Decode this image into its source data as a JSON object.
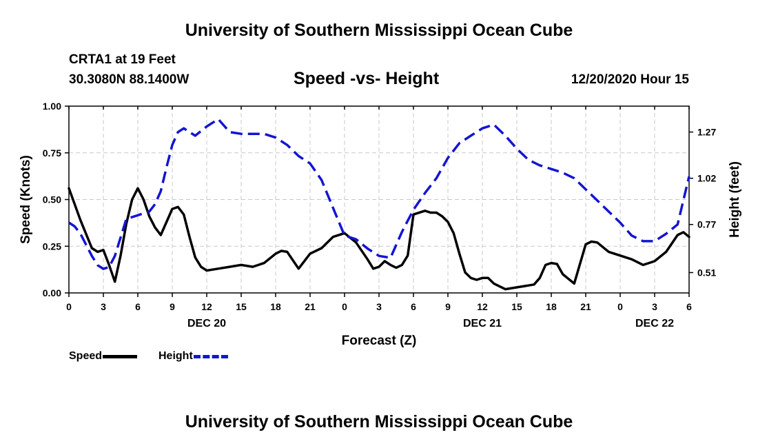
{
  "header": {
    "top_title": "University of Southern Mississippi Ocean Cube",
    "station": "CRTA1 at 19 Feet",
    "coords": "30.3080N 88.1400W",
    "chart_title": "Speed -vs- Height",
    "date_hour": "12/20/2020 Hour 15",
    "bottom_title": "University of Southern Mississippi Ocean Cube"
  },
  "legend": {
    "speed_label": "Speed",
    "height_label": "Height"
  },
  "colors": {
    "speed": "#000000",
    "height": "#1414d2",
    "grid": "#c8c8c8"
  },
  "chart_data": {
    "type": "line",
    "title": "Speed -vs- Height",
    "xlabel": "Forecast (Z)",
    "ylabel": "Speed (Knots)",
    "y2label": "Height (feet)",
    "xlim": [
      0,
      54
    ],
    "ylim": [
      0,
      1.0
    ],
    "y2lim": [
      0.4,
      1.41
    ],
    "grid": true,
    "x_tick_values": [
      0,
      3,
      6,
      9,
      12,
      15,
      18,
      21,
      24,
      27,
      30,
      33,
      36,
      39,
      42,
      45,
      48,
      51,
      54
    ],
    "x_tick_labels": [
      "0",
      "3",
      "6",
      "9",
      "12",
      "15",
      "18",
      "21",
      "0",
      "3",
      "6",
      "9",
      "12",
      "15",
      "18",
      "21",
      "0",
      "3",
      "6"
    ],
    "day_labels": [
      {
        "x": 12,
        "label": "DEC 20"
      },
      {
        "x": 36,
        "label": "DEC 21"
      },
      {
        "x": 51,
        "label": "DEC 22"
      }
    ],
    "y_tick_values": [
      0,
      0.25,
      0.5,
      0.75,
      1.0
    ],
    "y_tick_labels": [
      "0.00",
      "0.25",
      "0.50",
      "0.75",
      "1.00"
    ],
    "y2_tick_values": [
      0.51,
      0.77,
      1.02,
      1.27
    ],
    "y2_tick_labels": [
      "0.51",
      "0.77",
      "1.02",
      "1.27"
    ],
    "series": [
      {
        "name": "Speed",
        "axis": "left",
        "style": "solid",
        "x": [
          0,
          1,
          2,
          2.5,
          3,
          3.5,
          4,
          4.5,
          5,
          5.5,
          6,
          6.5,
          7,
          7.5,
          8,
          8.5,
          9,
          9.5,
          10,
          10.5,
          11,
          11.5,
          12,
          13,
          14,
          15,
          16,
          17,
          18,
          18.5,
          19,
          20,
          21,
          22,
          23,
          24,
          25,
          26,
          26.5,
          27,
          27.5,
          28,
          28.5,
          29,
          29.5,
          30,
          31,
          31.5,
          32,
          32.5,
          33,
          33.5,
          34,
          34.5,
          35,
          35.5,
          36,
          36.5,
          37,
          38,
          39,
          40,
          40.5,
          41,
          41.5,
          42,
          42.5,
          43,
          44,
          45,
          45.5,
          46,
          47,
          48,
          49,
          50,
          51,
          52,
          53,
          53.5,
          54
        ],
        "values": [
          0.56,
          0.39,
          0.24,
          0.22,
          0.23,
          0.15,
          0.06,
          0.2,
          0.37,
          0.5,
          0.56,
          0.5,
          0.41,
          0.35,
          0.31,
          0.38,
          0.45,
          0.46,
          0.42,
          0.3,
          0.19,
          0.14,
          0.12,
          0.13,
          0.14,
          0.15,
          0.14,
          0.16,
          0.21,
          0.225,
          0.22,
          0.13,
          0.21,
          0.24,
          0.3,
          0.32,
          0.27,
          0.18,
          0.13,
          0.14,
          0.17,
          0.15,
          0.135,
          0.15,
          0.2,
          0.42,
          0.44,
          0.43,
          0.43,
          0.41,
          0.38,
          0.32,
          0.21,
          0.11,
          0.08,
          0.07,
          0.08,
          0.08,
          0.05,
          0.02,
          0.03,
          0.04,
          0.045,
          0.08,
          0.15,
          0.16,
          0.155,
          0.1,
          0.05,
          0.26,
          0.275,
          0.27,
          0.22,
          0.2,
          0.18,
          0.15,
          0.17,
          0.22,
          0.31,
          0.325,
          0.3
        ]
      },
      {
        "name": "Height",
        "axis": "right",
        "style": "dashed",
        "x": [
          0,
          0.5,
          1,
          1.5,
          2,
          2.5,
          3,
          3.5,
          4,
          4.5,
          5,
          6,
          7,
          7.5,
          8,
          8.5,
          9,
          9.5,
          10,
          11,
          12,
          13,
          14,
          15,
          16,
          17,
          18,
          19,
          20,
          21,
          22,
          23,
          24,
          25,
          26,
          27,
          28,
          29,
          30,
          31,
          32,
          33,
          34,
          35,
          36,
          37,
          38,
          39,
          40,
          41,
          42,
          43,
          44,
          45,
          46,
          47,
          48,
          49,
          50,
          51,
          52,
          53,
          54
        ],
        "values": [
          0.78,
          0.76,
          0.72,
          0.66,
          0.6,
          0.55,
          0.53,
          0.54,
          0.6,
          0.7,
          0.8,
          0.82,
          0.84,
          0.88,
          0.95,
          1.08,
          1.2,
          1.27,
          1.29,
          1.25,
          1.3,
          1.34,
          1.27,
          1.26,
          1.26,
          1.26,
          1.24,
          1.2,
          1.14,
          1.1,
          1.01,
          0.86,
          0.71,
          0.69,
          0.64,
          0.6,
          0.59,
          0.73,
          0.85,
          0.94,
          1.02,
          1.13,
          1.21,
          1.25,
          1.29,
          1.31,
          1.25,
          1.18,
          1.12,
          1.09,
          1.07,
          1.05,
          1.02,
          0.96,
          0.9,
          0.84,
          0.78,
          0.71,
          0.68,
          0.68,
          0.72,
          0.77,
          1.03
        ]
      }
    ]
  }
}
